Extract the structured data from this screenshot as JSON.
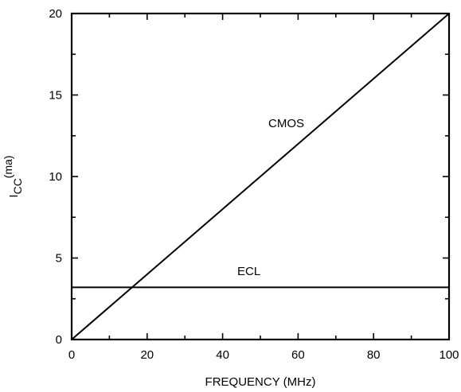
{
  "chart_data": {
    "type": "line",
    "title": "",
    "xlabel": "FREQUENCY (MHz)",
    "ylabel": {
      "main": "I",
      "subscript": "CC",
      "superscript": "(ma)"
    },
    "xlim": [
      0,
      100
    ],
    "ylim": [
      0,
      20
    ],
    "x_ticks": [
      "0",
      "20",
      "40",
      "60",
      "80",
      "100"
    ],
    "y_ticks": [
      "0",
      "5",
      "10",
      "15",
      "20"
    ],
    "grid": false,
    "series": [
      {
        "name": "CMOS",
        "x": [
          0,
          100
        ],
        "y": [
          0,
          20
        ]
      },
      {
        "name": "ECL",
        "x": [
          0,
          100
        ],
        "y": [
          3.2,
          3.2
        ]
      }
    ]
  }
}
